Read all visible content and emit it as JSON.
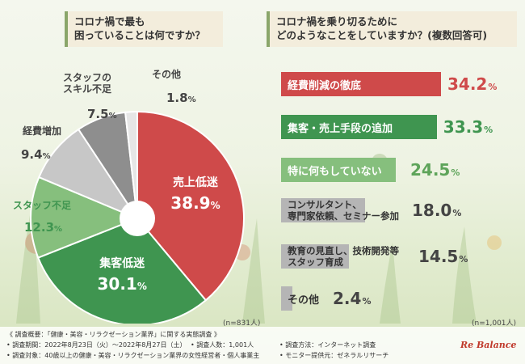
{
  "left_question": {
    "line1": "コロナ禍で最も",
    "line2": "困っていることは何ですか？"
  },
  "right_question": {
    "line1": "コロナ禍を乗り切るために",
    "line2": "どのようなことをしていますか？(複数回答可)"
  },
  "left_n": "(n=831人)",
  "right_n": "(n=1,001人)",
  "chart_data": [
    {
      "type": "pie",
      "slices": [
        {
          "label": "売上低迷",
          "value": 38.9,
          "color": "#cf4a4a"
        },
        {
          "label": "集客低迷",
          "value": 30.1,
          "color": "#3f9550"
        },
        {
          "label": "スタッフ不足",
          "value": 12.3,
          "color": "#86bf7d"
        },
        {
          "label": "経費増加",
          "value": 9.4,
          "color": "#c7c7c7"
        },
        {
          "label": "スタッフのスキル不足",
          "value": 7.5,
          "color": "#8e8e8e"
        },
        {
          "label": "その他",
          "value": 1.8,
          "color": "#e6e6e6"
        }
      ],
      "unit": "%"
    },
    {
      "type": "bar",
      "orientation": "horizontal",
      "categories": [
        "経費削減の徹底",
        "集客・売上手段の追加",
        "特に何もしていない",
        "コンサルタント、専門家依頼、セミナー参加",
        "教育の見直し、技術開発等スタッフ育成",
        "その他"
      ],
      "category_lines": [
        [
          "経費削減の徹底"
        ],
        [
          "集客・売上手段の追加"
        ],
        [
          "特に何もしていない"
        ],
        [
          "コンサルタント、",
          "専門家依頼、セミナー参加"
        ],
        [
          "教育の見直し、技術開発等",
          "スタッフ育成"
        ],
        [
          "その他"
        ]
      ],
      "values": [
        34.2,
        33.3,
        24.5,
        18.0,
        14.5,
        2.4
      ],
      "value_labels": [
        "34.2",
        "33.3",
        "24.5",
        "18.0",
        "14.5",
        "2.4"
      ],
      "colors": [
        "#cf4a4a",
        "#3f9550",
        "#86bf7d",
        "#b5b5b5",
        "#b5b5b5",
        "#b5b5b5"
      ],
      "unit": "%"
    }
  ],
  "footer": {
    "overview": "《 調査概要：「健康・美容・リラクゼーション業界」に関する実態調査 》",
    "period": "• 調査期間：2022年8月23日（火）～2022年8月27日（土）",
    "count": "• 調査人数：1,001人",
    "method": "• 調査方法：インターネット調査",
    "target": "• 調査対象：40歳以上の健康・美容・リラクゼーション業界の女性経営者・個人事業主",
    "provider": "• モニター提供元：ゼネラルリサーチ"
  },
  "logo": "Re Balance"
}
